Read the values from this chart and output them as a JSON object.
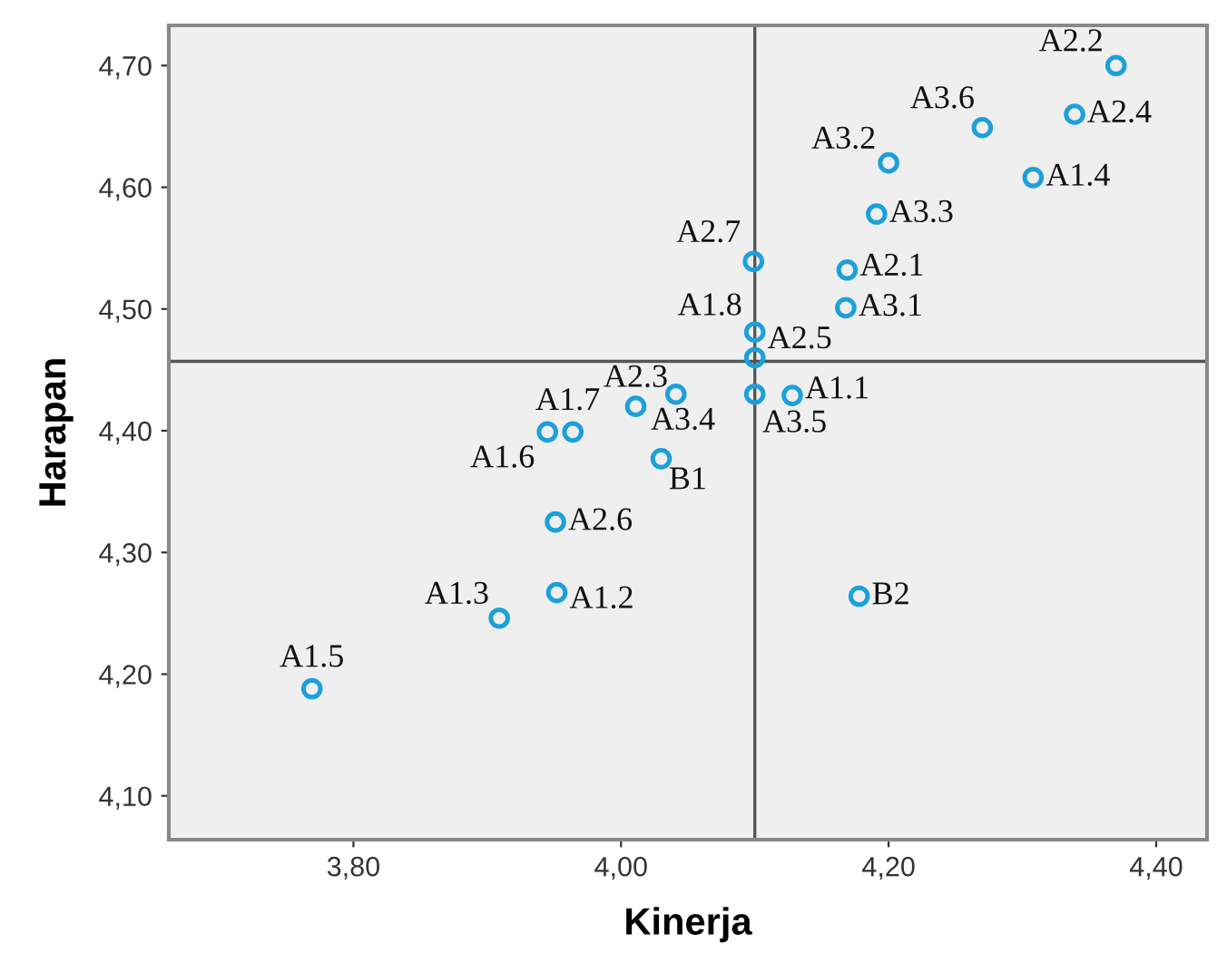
{
  "chart_data": {
    "type": "scatter",
    "xlabel": "Kinerja",
    "ylabel": "Harapan",
    "x": [
      4.37,
      4.339,
      4.27,
      4.308,
      4.2,
      4.191,
      4.099,
      4.169,
      4.168,
      4.1,
      4.1,
      4.1,
      4.128,
      4.041,
      4.011,
      3.945,
      3.964,
      4.03,
      3.951,
      3.952,
      3.909,
      3.769,
      4.178
    ],
    "series": [
      {
        "color": "#1ca0dc",
        "values": [
          4.7,
          4.66,
          4.649,
          4.608,
          4.62,
          4.578,
          4.539,
          4.532,
          4.501,
          4.481,
          4.46,
          4.43,
          4.429,
          4.43,
          4.42,
          4.399,
          4.399,
          4.377,
          4.325,
          4.267,
          4.246,
          4.188,
          4.264
        ]
      }
    ],
    "marker": "circle",
    "grid": false,
    "legend": false,
    "xlim": [
      3.662,
      4.438
    ],
    "ylim": [
      4.064,
      4.733
    ],
    "xticks": [
      {
        "value": 3.8,
        "label": "3,80"
      },
      {
        "value": 4.0,
        "label": "4,00"
      },
      {
        "value": 4.2,
        "label": "4,20"
      },
      {
        "value": 4.4,
        "label": "4,40"
      }
    ],
    "yticks": [
      {
        "value": 4.1,
        "label": "4,10"
      },
      {
        "value": 4.2,
        "label": "4,20"
      },
      {
        "value": 4.3,
        "label": "4,30"
      },
      {
        "value": 4.4,
        "label": "4,40"
      },
      {
        "value": 4.5,
        "label": "4,50"
      },
      {
        "value": 4.6,
        "label": "4,60"
      },
      {
        "value": 4.7,
        "label": "4,70"
      }
    ],
    "ref_lines": [
      {
        "axis": "x",
        "value": 4.1,
        "color": "#555555"
      },
      {
        "axis": "y",
        "value": 4.457,
        "color": "#555555"
      }
    ],
    "annotations": [
      {
        "text": "A2.2",
        "x": 4.37,
        "y": 4.7
      },
      {
        "text": "A2.4",
        "x": 4.339,
        "y": 4.66
      },
      {
        "text": "A3.6",
        "x": 4.27,
        "y": 4.649
      },
      {
        "text": "A1.4",
        "x": 4.308,
        "y": 4.608
      },
      {
        "text": "A3.2",
        "x": 4.2,
        "y": 4.62
      },
      {
        "text": "A3.3",
        "x": 4.191,
        "y": 4.578
      },
      {
        "text": "A2.7",
        "x": 4.099,
        "y": 4.539
      },
      {
        "text": "A2.1",
        "x": 4.169,
        "y": 4.532
      },
      {
        "text": "A3.1",
        "x": 4.168,
        "y": 4.501
      },
      {
        "text": "A1.8",
        "x": 4.1,
        "y": 4.481
      },
      {
        "text": "A2.5",
        "x": 4.1,
        "y": 4.46
      },
      {
        "text": "A3.5",
        "x": 4.1,
        "y": 4.43
      },
      {
        "text": "A1.1",
        "x": 4.128,
        "y": 4.429
      },
      {
        "text": "A3.4",
        "x": 4.041,
        "y": 4.43
      },
      {
        "text": "A2.3",
        "x": 4.011,
        "y": 4.42
      },
      {
        "text": "A1.6",
        "x": 3.945,
        "y": 4.399
      },
      {
        "text": "A1.7",
        "x": 3.964,
        "y": 4.399
      },
      {
        "text": "B1",
        "x": 4.03,
        "y": 4.377
      },
      {
        "text": "A2.6",
        "x": 3.951,
        "y": 4.325
      },
      {
        "text": "A1.2",
        "x": 3.952,
        "y": 4.267
      },
      {
        "text": "A1.3",
        "x": 3.909,
        "y": 4.246
      },
      {
        "text": "A1.5",
        "x": 3.769,
        "y": 4.188
      },
      {
        "text": "B2",
        "x": 4.178,
        "y": 4.264
      }
    ]
  }
}
